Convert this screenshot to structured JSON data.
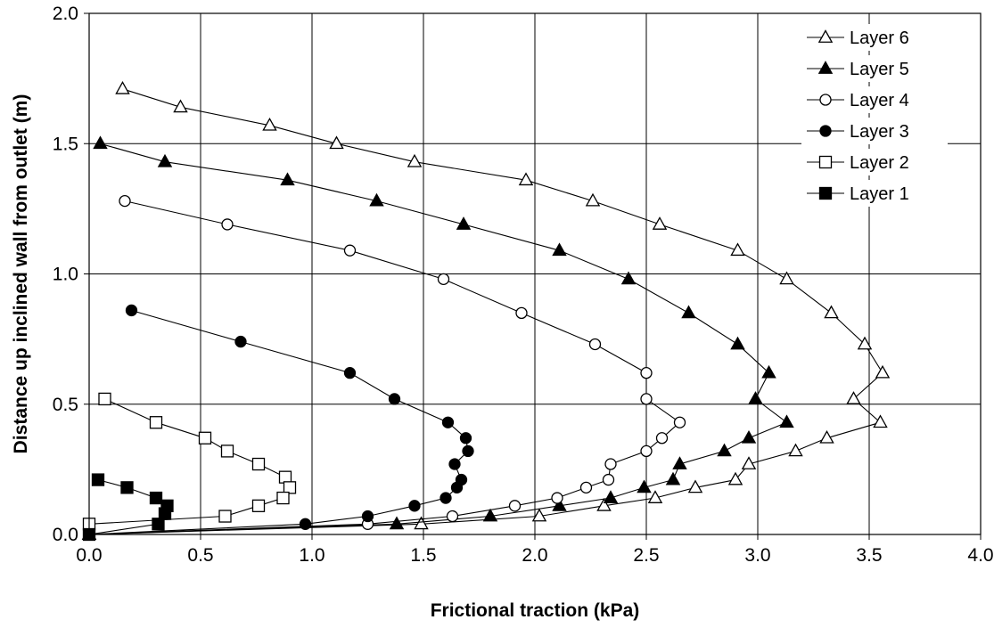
{
  "chart_data": {
    "type": "line",
    "title": "",
    "xlabel": "Frictional traction  (kPa)",
    "ylabel": "Distance up inclined wall from outlet  (m)",
    "xlim": [
      0,
      4
    ],
    "ylim": [
      0,
      2
    ],
    "xticks": [
      "0.0",
      "0.5",
      "1.0",
      "1.5",
      "2.0",
      "2.5",
      "3.0",
      "3.5",
      "4.0"
    ],
    "yticks": [
      "0.0",
      "0.5",
      "1.0",
      "1.5",
      "2.0"
    ],
    "grid": true,
    "legend_position": "top-right",
    "series": [
      {
        "name": "Layer 6",
        "marker": "triangle-open",
        "points": [
          [
            0.15,
            1.71
          ],
          [
            0.41,
            1.64
          ],
          [
            0.81,
            1.57
          ],
          [
            1.11,
            1.5
          ],
          [
            1.46,
            1.43
          ],
          [
            1.96,
            1.36
          ],
          [
            2.26,
            1.28
          ],
          [
            2.56,
            1.19
          ],
          [
            2.91,
            1.09
          ],
          [
            3.13,
            0.98
          ],
          [
            3.33,
            0.85
          ],
          [
            3.48,
            0.73
          ],
          [
            3.56,
            0.62
          ],
          [
            3.43,
            0.52
          ],
          [
            3.55,
            0.43
          ],
          [
            3.31,
            0.37
          ],
          [
            3.17,
            0.32
          ],
          [
            2.96,
            0.27
          ],
          [
            2.9,
            0.21
          ],
          [
            2.72,
            0.18
          ],
          [
            2.54,
            0.14
          ],
          [
            2.31,
            0.11
          ],
          [
            2.02,
            0.07
          ],
          [
            1.49,
            0.04
          ],
          [
            0,
            0
          ]
        ]
      },
      {
        "name": "Layer 5",
        "marker": "triangle-filled",
        "points": [
          [
            0.05,
            1.5
          ],
          [
            0.34,
            1.43
          ],
          [
            0.89,
            1.36
          ],
          [
            1.29,
            1.28
          ],
          [
            1.68,
            1.19
          ],
          [
            2.11,
            1.09
          ],
          [
            2.42,
            0.98
          ],
          [
            2.69,
            0.85
          ],
          [
            2.91,
            0.73
          ],
          [
            3.05,
            0.62
          ],
          [
            2.99,
            0.52
          ],
          [
            3.13,
            0.43
          ],
          [
            2.96,
            0.37
          ],
          [
            2.85,
            0.32
          ],
          [
            2.65,
            0.27
          ],
          [
            2.62,
            0.21
          ],
          [
            2.49,
            0.18
          ],
          [
            2.34,
            0.14
          ],
          [
            2.11,
            0.11
          ],
          [
            1.8,
            0.07
          ],
          [
            1.38,
            0.04
          ],
          [
            0,
            0
          ]
        ]
      },
      {
        "name": "Layer 4",
        "marker": "circle-open",
        "points": [
          [
            0.16,
            1.28
          ],
          [
            0.62,
            1.19
          ],
          [
            1.17,
            1.09
          ],
          [
            1.59,
            0.98
          ],
          [
            1.94,
            0.85
          ],
          [
            2.27,
            0.73
          ],
          [
            2.5,
            0.62
          ],
          [
            2.5,
            0.52
          ],
          [
            2.65,
            0.43
          ],
          [
            2.57,
            0.37
          ],
          [
            2.5,
            0.32
          ],
          [
            2.34,
            0.27
          ],
          [
            2.33,
            0.21
          ],
          [
            2.23,
            0.18
          ],
          [
            2.1,
            0.14
          ],
          [
            1.91,
            0.11
          ],
          [
            1.63,
            0.07
          ],
          [
            1.25,
            0.04
          ],
          [
            0,
            0
          ]
        ]
      },
      {
        "name": "Layer 3",
        "marker": "circle-filled",
        "points": [
          [
            0.19,
            0.86
          ],
          [
            0.68,
            0.74
          ],
          [
            1.17,
            0.62
          ],
          [
            1.37,
            0.52
          ],
          [
            1.61,
            0.43
          ],
          [
            1.69,
            0.37
          ],
          [
            1.7,
            0.32
          ],
          [
            1.64,
            0.27
          ],
          [
            1.67,
            0.21
          ],
          [
            1.65,
            0.18
          ],
          [
            1.6,
            0.14
          ],
          [
            1.46,
            0.11
          ],
          [
            1.25,
            0.07
          ],
          [
            0.97,
            0.04
          ],
          [
            0,
            0
          ]
        ]
      },
      {
        "name": "Layer 2",
        "marker": "square-open",
        "points": [
          [
            0.07,
            0.52
          ],
          [
            0.3,
            0.43
          ],
          [
            0.52,
            0.37
          ],
          [
            0.62,
            0.32
          ],
          [
            0.76,
            0.27
          ],
          [
            0.88,
            0.22
          ],
          [
            0.9,
            0.18
          ],
          [
            0.87,
            0.14
          ],
          [
            0.76,
            0.11
          ],
          [
            0.61,
            0.07
          ],
          [
            0,
            0.04
          ]
        ]
      },
      {
        "name": "Layer 1",
        "marker": "square-filled",
        "points": [
          [
            0.04,
            0.21
          ],
          [
            0.17,
            0.18
          ],
          [
            0.3,
            0.14
          ],
          [
            0.35,
            0.11
          ],
          [
            0.34,
            0.08
          ],
          [
            0.31,
            0.04
          ],
          [
            0,
            0
          ]
        ]
      }
    ]
  }
}
